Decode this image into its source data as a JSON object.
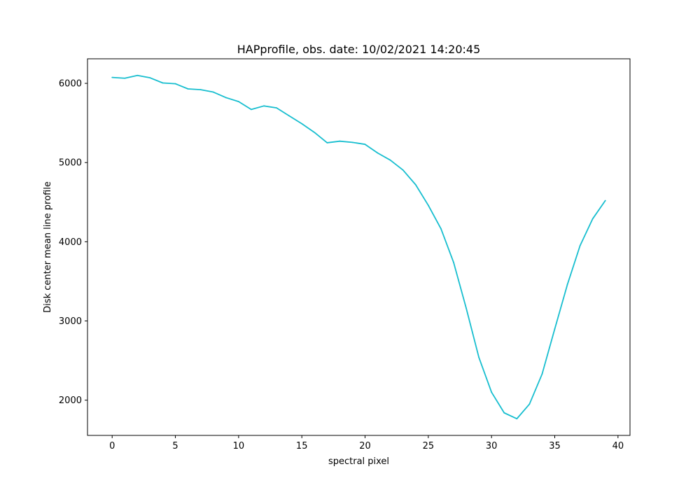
{
  "chart_data": {
    "type": "line",
    "title": "HAPprofile, obs. date: 10/02/2021 14:20:45",
    "xlabel": "spectral pixel",
    "ylabel": "Disk center mean line profile",
    "xlim": [
      -1.95,
      40.95
    ],
    "ylim": [
      1555,
      6310
    ],
    "xticks": [
      0,
      5,
      10,
      15,
      20,
      25,
      30,
      35,
      40
    ],
    "xtick_labels": [
      "0",
      "5",
      "10",
      "15",
      "20",
      "25",
      "30",
      "35",
      "40"
    ],
    "yticks": [
      2000,
      3000,
      4000,
      5000,
      6000
    ],
    "ytick_labels": [
      "2000",
      "3000",
      "4000",
      "5000",
      "6000"
    ],
    "grid": false,
    "series": [
      {
        "color": "#17becf",
        "x": [
          0,
          1,
          2,
          3,
          4,
          5,
          6,
          7,
          8,
          9,
          10,
          11,
          12,
          13,
          14,
          15,
          16,
          17,
          18,
          19,
          20,
          21,
          22,
          23,
          24,
          25,
          26,
          27,
          28,
          29,
          30,
          31,
          32,
          33,
          34,
          35,
          36,
          37,
          38,
          39
        ],
        "y": [
          6075,
          6065,
          6100,
          6070,
          6005,
          5995,
          5930,
          5920,
          5890,
          5820,
          5770,
          5670,
          5715,
          5690,
          5590,
          5490,
          5380,
          5250,
          5270,
          5255,
          5230,
          5120,
          5030,
          4905,
          4720,
          4460,
          4165,
          3740,
          3160,
          2540,
          2100,
          1840,
          1765,
          1950,
          2330,
          2900,
          3460,
          3950,
          4290,
          4520
        ]
      }
    ]
  }
}
